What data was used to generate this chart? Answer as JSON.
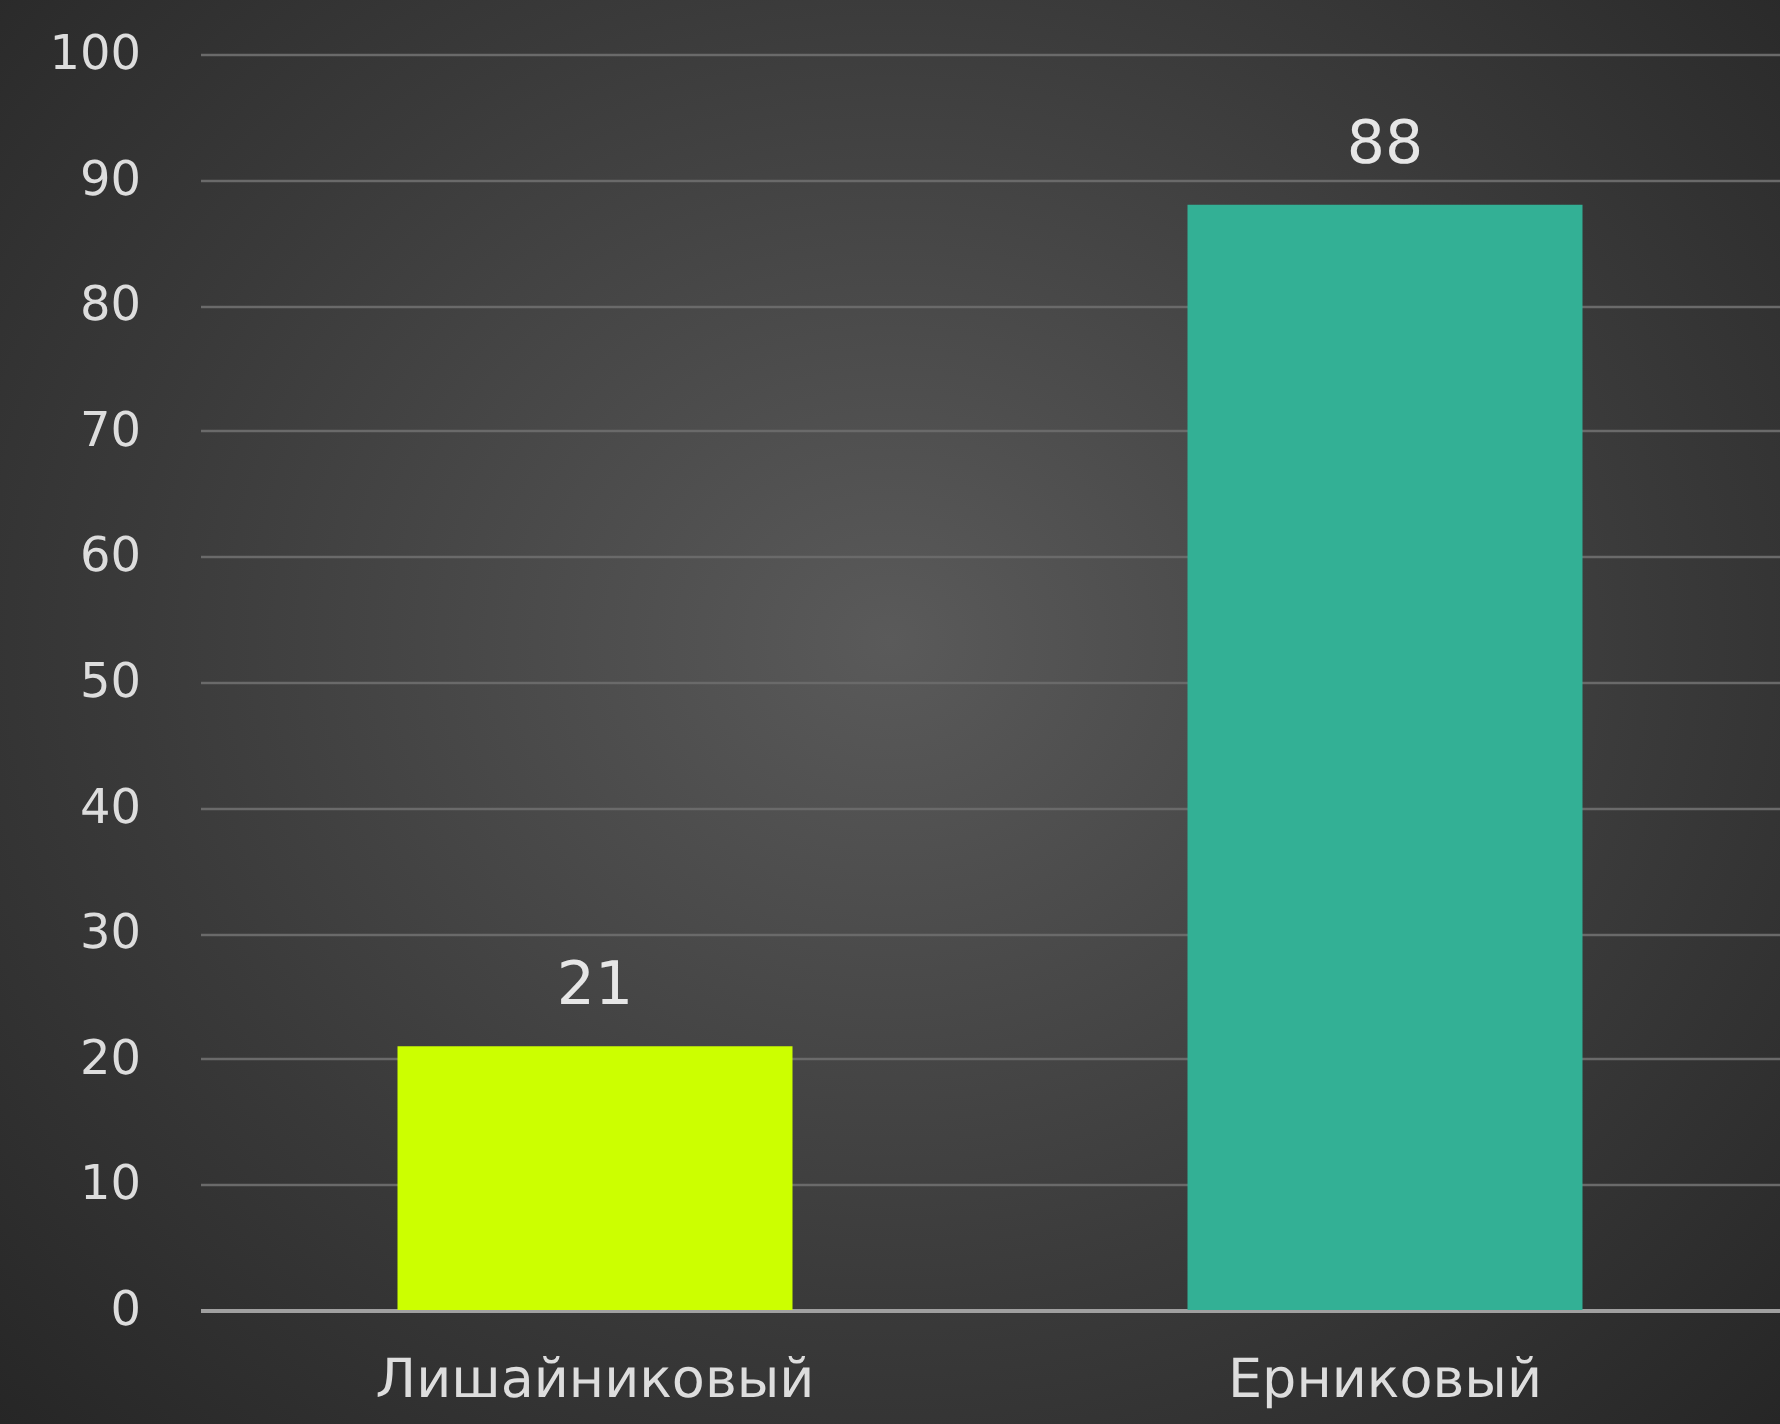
{
  "chart_data": {
    "type": "bar",
    "categories": [
      "Лишайниковый",
      "Ерниковый"
    ],
    "values": [
      21,
      88
    ],
    "colors": [
      "#ccff00",
      "#33b095"
    ],
    "ylim": [
      0,
      100
    ],
    "yticks": [
      0,
      10,
      20,
      30,
      40,
      50,
      60,
      70,
      80,
      90,
      100
    ],
    "grid": true,
    "data_labels": true,
    "legend": false
  }
}
